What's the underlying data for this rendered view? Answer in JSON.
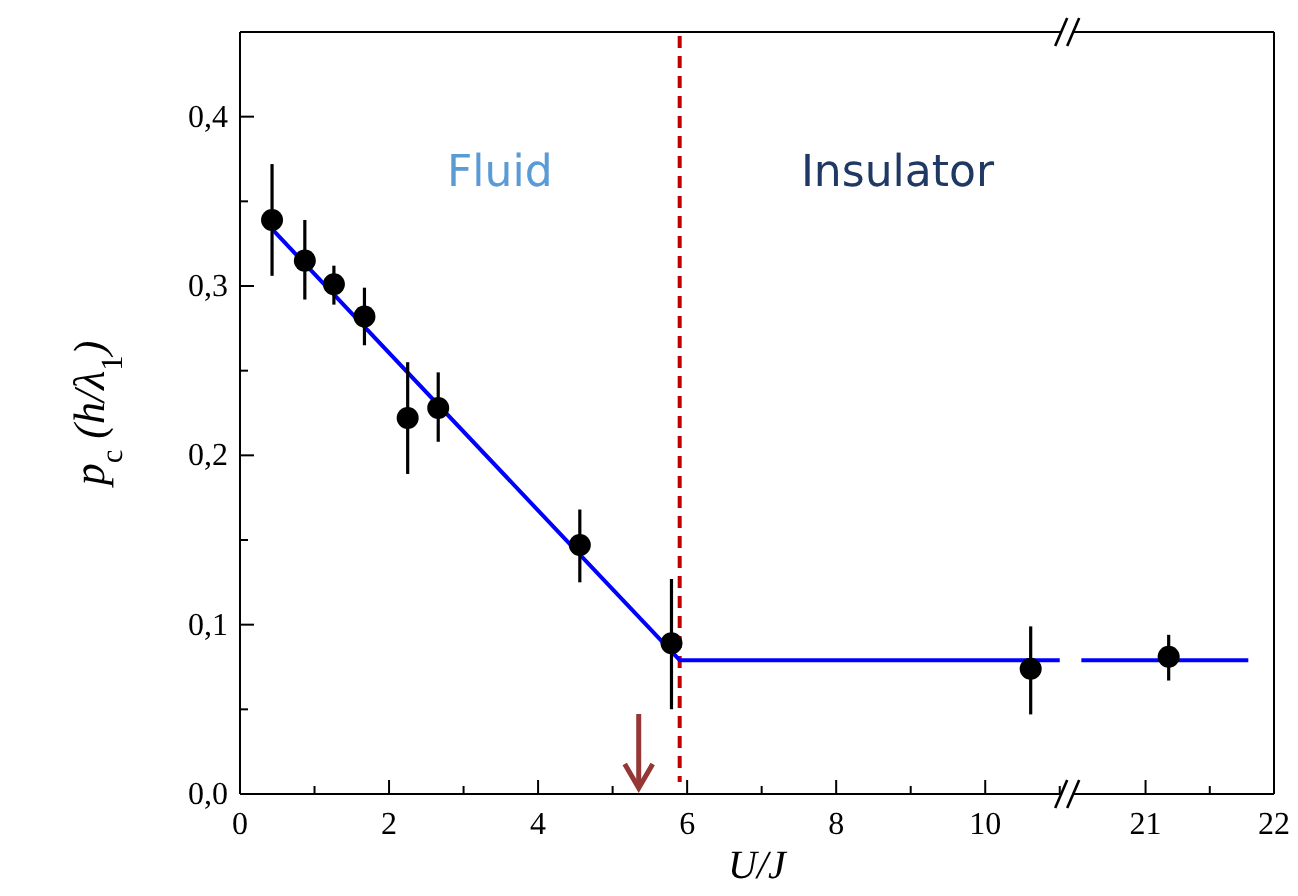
{
  "chart_data": [
    {
      "type": "scatter",
      "xlabel": "U/J",
      "ylabel": "p$_{c}$ (h/λ$_{1}$)",
      "annotations": [
        "Fluid",
        "Insulator"
      ],
      "xlim": [
        0,
        11.1
      ],
      "xticks": [
        0,
        {
          "value": 1,
          "label": null
        },
        2,
        {
          "value": 3,
          "label": null
        },
        4,
        {
          "value": 5,
          "label": null
        },
        6,
        {
          "value": 7,
          "label": null
        },
        8,
        {
          "value": 9,
          "label": null
        },
        10,
        {
          "value": 11,
          "label": null
        }
      ],
      "ylim": [
        0,
        0.45
      ],
      "yticks": [
        {
          "value": 0,
          "label": "0,0"
        },
        {
          "value": 0.05,
          "label": null
        },
        {
          "value": 0.1,
          "label": "0,1"
        },
        {
          "value": 0.15,
          "label": null
        },
        {
          "value": 0.2,
          "label": "0,2"
        },
        {
          "value": 0.25,
          "label": null
        },
        {
          "value": 0.3,
          "label": "0,3"
        },
        {
          "value": 0.35,
          "label": null
        },
        {
          "value": 0.4,
          "label": "0,4"
        }
      ],
      "ref_lines": [
        {
          "axis": "x",
          "value": 5.9,
          "color": "#c00000",
          "line_style": "dashed"
        }
      ],
      "grid": false,
      "series": [
        {
          "type": "line",
          "color": "#0000ff",
          "x": [
            0.4,
            5.9,
            11.0
          ],
          "values": [
            0.335,
            0.079,
            0.079
          ]
        },
        {
          "marker": "circle",
          "color": "#000000",
          "x": [
            0.43,
            0.87,
            1.26,
            1.67,
            2.25,
            2.66,
            4.56,
            5.79,
            10.61
          ],
          "values": [
            0.339,
            0.315,
            0.301,
            0.282,
            0.222,
            0.228,
            0.147,
            0.089,
            0.074
          ],
          "errors": [
            [
              0.306,
              0.372
            ],
            [
              0.292,
              0.339
            ],
            [
              0.289,
              0.312
            ],
            [
              0.265,
              0.299
            ],
            [
              0.189,
              0.255
            ],
            [
              0.208,
              0.249
            ],
            [
              0.125,
              0.168
            ],
            [
              0.05,
              0.127
            ],
            [
              0.047,
              0.099
            ]
          ]
        }
      ]
    },
    {
      "type": "scatter",
      "xlim": [
        20.39,
        22
      ],
      "xticks": [
        21,
        {
          "value": 21.5,
          "label": null
        },
        22
      ],
      "ylim": [
        0,
        0.45
      ],
      "tick_labels": "x",
      "grid": false,
      "series": [
        {
          "type": "line",
          "color": "#0000ff",
          "x": [
            20.5,
            21.8
          ],
          "values": [
            0.079,
            0.079
          ]
        },
        {
          "marker": "circle",
          "color": "#000000",
          "x": [
            21.18
          ],
          "values": [
            0.081
          ],
          "errors": [
            [
              0.067,
              0.094
            ]
          ]
        }
      ]
    }
  ]
}
